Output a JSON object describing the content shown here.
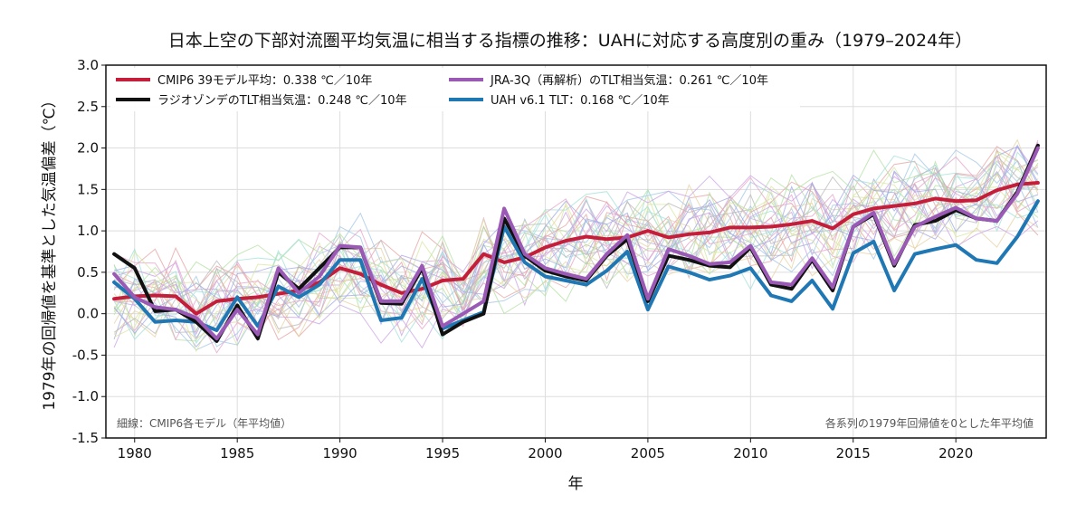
{
  "colors": {
    "cmip6_mean": "#c41e3a",
    "radiosonde": "#111111",
    "jra3q": "#9b59b6",
    "uah": "#1f77b4",
    "grid": "#dddddd",
    "model_palette": [
      "#e6a0a0",
      "#a0c4e6",
      "#b0e0a0",
      "#e6d0a0",
      "#c8a0e6",
      "#a0e0d8",
      "#e6a0c8",
      "#b8b8b8",
      "#d8e6a0",
      "#a0a8e6"
    ]
  },
  "chart_data": {
    "type": "line",
    "title": "日本上空の下部対流圏平均気温に相当する指標の推移：UAHに対応する高度別の重み（1979–2024年）",
    "xlabel": "年",
    "ylabel": "1979年の回帰値を基準とした気温偏差（℃）",
    "xlim": [
      1978.6,
      2024.4
    ],
    "ylim": [
      -1.5,
      3.0
    ],
    "xticks": [
      1980,
      1985,
      1990,
      1995,
      2000,
      2005,
      2010,
      2015,
      2020
    ],
    "xtick_labels": [
      "1980",
      "1985",
      "1990",
      "1995",
      "2000",
      "2005",
      "2010",
      "2015",
      "2020"
    ],
    "yticks": [
      -1.5,
      -1.0,
      -0.5,
      0.0,
      0.5,
      1.0,
      1.5,
      2.0,
      2.5,
      3.0
    ],
    "ytick_labels": [
      "-1.5",
      "-1.0",
      "-0.5",
      "0.0",
      "0.5",
      "1.0",
      "1.5",
      "2.0",
      "2.5",
      "3.0"
    ],
    "grid": true,
    "legend_position": "top-left",
    "x": [
      1979,
      1980,
      1981,
      1982,
      1983,
      1984,
      1985,
      1986,
      1987,
      1988,
      1989,
      1990,
      1991,
      1992,
      1993,
      1994,
      1995,
      1996,
      1997,
      1998,
      1999,
      2000,
      2001,
      2002,
      2003,
      2004,
      2005,
      2006,
      2007,
      2008,
      2009,
      2010,
      2011,
      2012,
      2013,
      2014,
      2015,
      2016,
      2017,
      2018,
      2019,
      2020,
      2021,
      2022,
      2023,
      2024
    ],
    "series": [
      {
        "name": "CMIP6 39モデル平均：0.338 ℃／10年",
        "key": "cmip6_mean",
        "values": [
          0.18,
          0.21,
          0.22,
          0.21,
          0.0,
          0.15,
          0.18,
          0.2,
          0.24,
          0.28,
          0.38,
          0.55,
          0.48,
          0.35,
          0.25,
          0.3,
          0.4,
          0.42,
          0.72,
          0.62,
          0.68,
          0.8,
          0.88,
          0.93,
          0.9,
          0.92,
          1.0,
          0.92,
          0.96,
          0.98,
          1.04,
          1.04,
          1.05,
          1.08,
          1.12,
          1.03,
          1.2,
          1.27,
          1.3,
          1.33,
          1.39,
          1.36,
          1.37,
          1.49,
          1.56,
          1.58
        ]
      },
      {
        "name": "ラジオゾンデのTLT相当気温：0.248 ℃／10年",
        "key": "radiosonde",
        "values": [
          0.72,
          0.55,
          0.03,
          0.05,
          -0.1,
          -0.33,
          0.1,
          -0.3,
          0.5,
          0.3,
          0.55,
          0.8,
          0.8,
          0.13,
          0.12,
          0.55,
          -0.25,
          -0.1,
          0.0,
          1.15,
          0.7,
          0.52,
          0.45,
          0.4,
          0.7,
          0.9,
          0.15,
          0.7,
          0.65,
          0.58,
          0.56,
          0.8,
          0.35,
          0.3,
          0.65,
          0.28,
          1.05,
          1.2,
          0.58,
          1.07,
          1.12,
          1.25,
          1.15,
          1.12,
          1.47,
          2.03
        ]
      },
      {
        "name": "JRA-3Q（再解析）のTLT相当気温：0.261 ℃／10年",
        "key": "jra3q",
        "values": [
          0.48,
          0.2,
          0.08,
          0.05,
          -0.05,
          -0.3,
          0.05,
          -0.25,
          0.55,
          0.25,
          0.45,
          0.82,
          0.8,
          0.15,
          0.15,
          0.58,
          -0.15,
          0.0,
          0.15,
          1.27,
          0.72,
          0.55,
          0.48,
          0.42,
          0.72,
          0.95,
          0.18,
          0.78,
          0.7,
          0.6,
          0.62,
          0.82,
          0.38,
          0.35,
          0.67,
          0.32,
          1.05,
          1.22,
          0.6,
          1.05,
          1.17,
          1.28,
          1.15,
          1.12,
          1.45,
          2.0
        ]
      },
      {
        "name": "UAH v6.1 TLT：0.168 ℃／10年",
        "key": "uah",
        "values": [
          0.38,
          0.18,
          -0.1,
          -0.08,
          -0.1,
          -0.2,
          0.2,
          -0.15,
          0.33,
          0.2,
          0.35,
          0.65,
          0.65,
          -0.08,
          -0.05,
          0.42,
          -0.18,
          -0.08,
          0.02,
          1.05,
          0.62,
          0.45,
          0.4,
          0.35,
          0.52,
          0.75,
          0.05,
          0.57,
          0.5,
          0.41,
          0.46,
          0.55,
          0.22,
          0.15,
          0.4,
          0.06,
          0.73,
          0.87,
          0.28,
          0.72,
          0.78,
          0.83,
          0.65,
          0.61,
          0.93,
          1.36
        ]
      }
    ],
    "annotations": {
      "bottom_left": "細線：CMIP6各モデル（年平均値）",
      "bottom_right": "各系列の1979年回帰値を0とした年平均値"
    }
  }
}
